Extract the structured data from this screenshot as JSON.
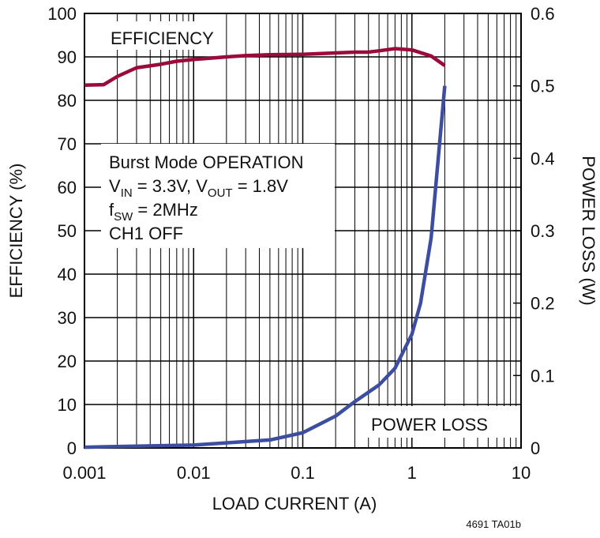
{
  "chart_data": {
    "type": "line",
    "xlabel": "LOAD CURRENT (A)",
    "ylabel": "EFFICIENCY (%)",
    "y2label": "POWER LOSS (W)",
    "xscale": "log",
    "xlim": [
      0.001,
      10
    ],
    "xticks": [
      0.001,
      0.01,
      0.1,
      1,
      10
    ],
    "ylim": [
      0,
      100
    ],
    "yticks": [
      0,
      10,
      20,
      30,
      40,
      50,
      60,
      70,
      80,
      90,
      100
    ],
    "y2lim": [
      0,
      0.6
    ],
    "y2ticks": [
      0,
      0.1,
      0.2,
      0.3,
      0.4,
      0.5,
      0.6
    ],
    "grid": true,
    "series": [
      {
        "name": "EFFICIENCY",
        "color": "#9b0a3a",
        "x": [
          0.001,
          0.0015,
          0.002,
          0.003,
          0.005,
          0.007,
          0.01,
          0.02,
          0.03,
          0.05,
          0.1,
          0.2,
          0.3,
          0.4,
          0.5,
          0.7,
          1,
          1.5,
          2
        ],
        "values": [
          83.5,
          83.6,
          85.5,
          87.5,
          88.3,
          89,
          89.4,
          90,
          90.3,
          90.5,
          90.6,
          90.9,
          91.1,
          91.1,
          91.4,
          91.9,
          91.6,
          90.2,
          88
        ]
      },
      {
        "name": "POWER LOSS",
        "color": "#3d4ea0",
        "axis": "y2",
        "x": [
          0.001,
          0.01,
          0.05,
          0.1,
          0.2,
          0.3,
          0.5,
          0.7,
          1,
          1.2,
          1.5,
          2
        ],
        "values": [
          0.001,
          0.004,
          0.011,
          0.021,
          0.044,
          0.064,
          0.087,
          0.11,
          0.157,
          0.2,
          0.29,
          0.5
        ]
      }
    ],
    "annotations": [
      [
        {
          "text": "Burst Mode OPERATION"
        }
      ],
      [
        {
          "text": "V"
        },
        {
          "sub": "IN"
        },
        {
          "text": " = 3.3V, V"
        },
        {
          "sub": "OUT"
        },
        {
          "text": " = 1.8V"
        }
      ],
      [
        {
          "text": "f"
        },
        {
          "sub": "SW"
        },
        {
          "text": " = 2MHz"
        }
      ],
      [
        {
          "text": "CH1 OFF"
        }
      ]
    ],
    "footnote": "4691 TA01b"
  }
}
